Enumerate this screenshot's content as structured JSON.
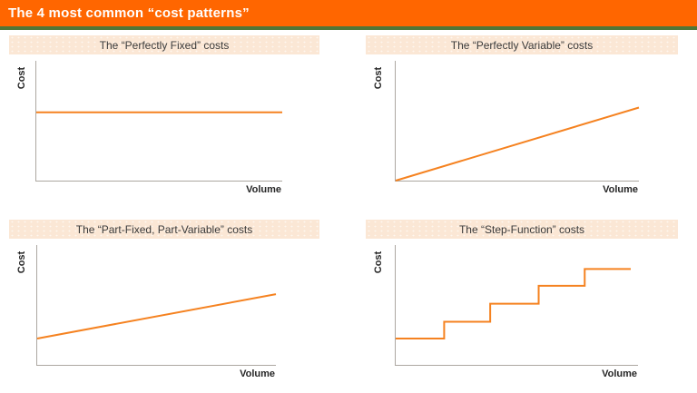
{
  "header": {
    "title": "The 4 most common “cost patterns”"
  },
  "colors": {
    "header_bg": "#FF6600",
    "header_strip": "#507637",
    "band_bg": "#FBE7D5",
    "band_text": "#3A3A3A",
    "line": "#F58220",
    "axis": "#ACA7A1",
    "label_text": "#262626"
  },
  "chart_data": [
    {
      "type": "line",
      "title": "The “Perfectly Fixed” costs",
      "xlabel": "Volume",
      "ylabel": "Cost",
      "x_range": [
        0,
        100
      ],
      "y_range": [
        0,
        100
      ],
      "grid": false,
      "legend": false,
      "series": [
        {
          "name": "cost",
          "points": [
            [
              0,
              57
            ],
            [
              100,
              57
            ]
          ]
        }
      ]
    },
    {
      "type": "line",
      "title": "The “Perfectly Variable” costs",
      "xlabel": "Volume",
      "ylabel": "Cost",
      "x_range": [
        0,
        100
      ],
      "y_range": [
        0,
        100
      ],
      "grid": false,
      "legend": false,
      "series": [
        {
          "name": "cost",
          "points": [
            [
              0,
              0
            ],
            [
              100,
              61
            ]
          ]
        }
      ]
    },
    {
      "type": "line",
      "title": "The “Part-Fixed, Part-Variable” costs",
      "xlabel": "Volume",
      "ylabel": "Cost",
      "x_range": [
        0,
        100
      ],
      "y_range": [
        0,
        100
      ],
      "grid": false,
      "legend": false,
      "series": [
        {
          "name": "cost",
          "points": [
            [
              0,
              22
            ],
            [
              100,
              59
            ]
          ]
        }
      ]
    },
    {
      "type": "line",
      "title": "The “Step-Function” costs",
      "xlabel": "Volume",
      "ylabel": "Cost",
      "x_range": [
        0,
        100
      ],
      "y_range": [
        0,
        100
      ],
      "grid": false,
      "legend": false,
      "series": [
        {
          "name": "cost",
          "points": [
            [
              0,
              22
            ],
            [
              20,
              22
            ],
            [
              20,
              36
            ],
            [
              39,
              36
            ],
            [
              39,
              51
            ],
            [
              59,
              51
            ],
            [
              59,
              66
            ],
            [
              78,
              66
            ],
            [
              78,
              80
            ],
            [
              97,
              80
            ]
          ]
        }
      ]
    }
  ]
}
